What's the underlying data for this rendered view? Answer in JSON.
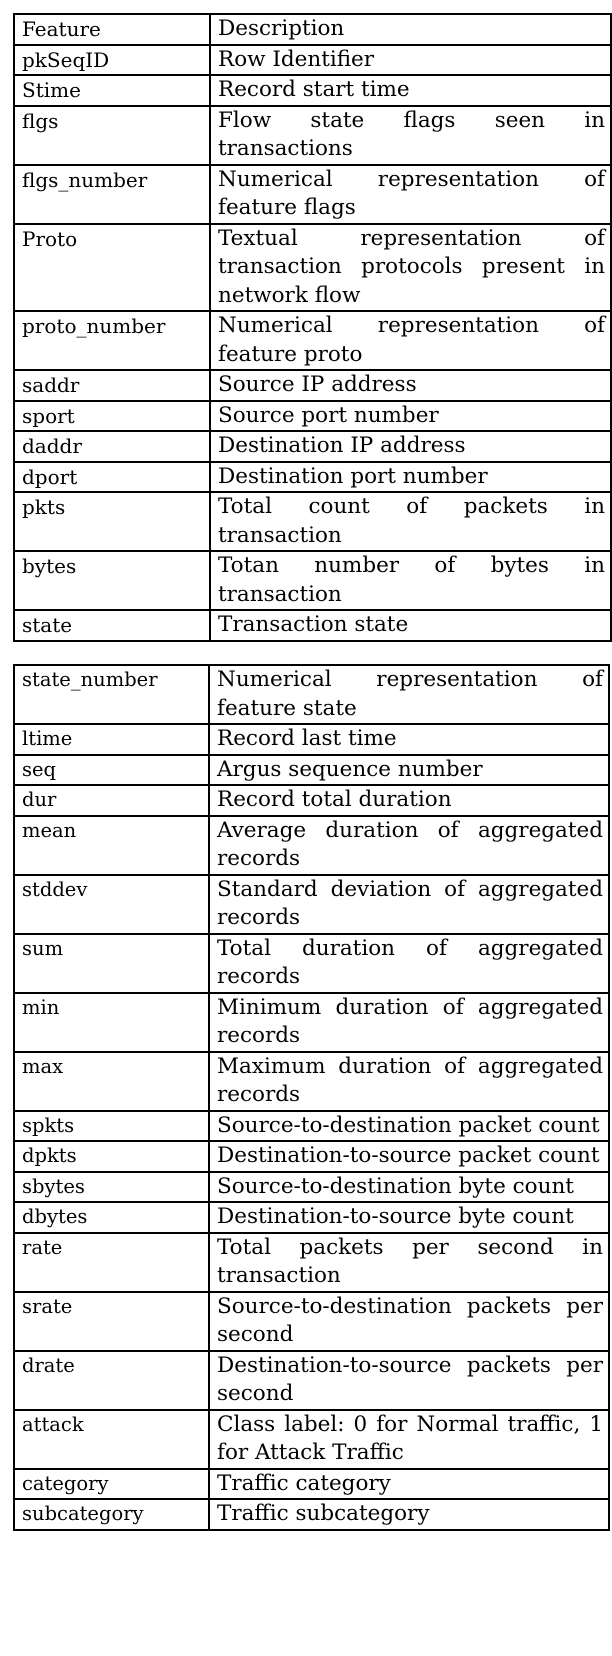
{
  "table_top": {
    "header": {
      "feature": "Feature",
      "description": "Description"
    },
    "rows": [
      {
        "feature": "pkSeqID",
        "description": "Row Identifier"
      },
      {
        "feature": "Stime",
        "description": "Record start time"
      },
      {
        "feature": "flgs",
        "description": "Flow state flags seen in transactions"
      },
      {
        "feature": "flgs_number",
        "description": "Numerical representation of feature flags"
      },
      {
        "feature": "Proto",
        "description": "Textual representation of transaction protocols present in network flow"
      },
      {
        "feature": "proto_number",
        "description": "Numerical representation of feature proto"
      },
      {
        "feature": "saddr",
        "description": "Source IP address"
      },
      {
        "feature": "sport",
        "description": "Source port number"
      },
      {
        "feature": "daddr",
        "description": "Destination IP address"
      },
      {
        "feature": "dport",
        "description": "Destination port number"
      },
      {
        "feature": "pkts",
        "description": "Total count of packets in transaction"
      },
      {
        "feature": "bytes",
        "description": "Totan number of bytes in transaction"
      },
      {
        "feature": "state",
        "description": "Transaction state"
      }
    ]
  },
  "table_bottom": {
    "rows": [
      {
        "feature": "state_number",
        "description": "Numerical representation of feature state"
      },
      {
        "feature": "ltime",
        "description": "Record last time"
      },
      {
        "feature": "seq",
        "description": "Argus sequence number"
      },
      {
        "feature": "dur",
        "description": "Record total duration"
      },
      {
        "feature": "mean",
        "description": "Average duration of aggregated records"
      },
      {
        "feature": "stddev",
        "description": "Standard deviation of aggregated records"
      },
      {
        "feature": "sum",
        "description": "Total duration of aggregated records"
      },
      {
        "feature": "min",
        "description": "Minimum duration of aggregated records"
      },
      {
        "feature": "max",
        "description": "Maximum duration of aggregated records"
      },
      {
        "feature": "spkts",
        "description": "Source-to-destination packet count"
      },
      {
        "feature": "dpkts",
        "description": "Destination-to-source packet count"
      },
      {
        "feature": "sbytes",
        "description": "Source-to-destination byte count"
      },
      {
        "feature": "dbytes",
        "description": "Destination-to-source byte count"
      },
      {
        "feature": "rate",
        "description": "Total packets per second in transaction"
      },
      {
        "feature": "srate",
        "description": "Source-to-destination packets per second"
      },
      {
        "feature": "drate",
        "description": "Destination-to-source packets per second"
      },
      {
        "feature": "attack",
        "description": "Class label: 0 for Normal traffic, 1 for Attack Traffic"
      },
      {
        "feature": "category",
        "description": "Traffic category"
      },
      {
        "feature": "subcategory",
        "description": "Traffic subcategory"
      }
    ]
  }
}
